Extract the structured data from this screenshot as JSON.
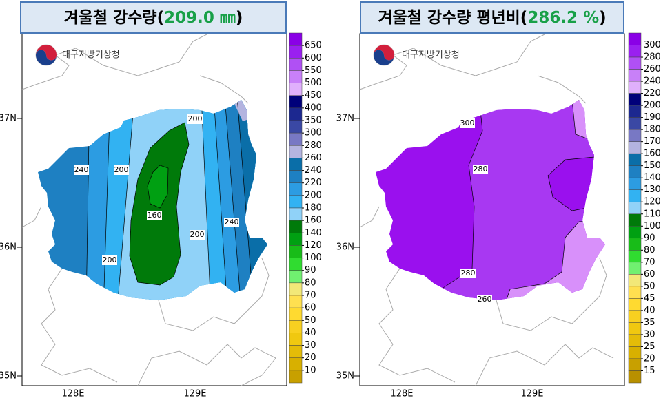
{
  "panels": [
    {
      "title": "겨울철 강수량(",
      "highlight": "209.0 ㎜",
      "title_end": ")",
      "logo": "대구지방기상청",
      "lat_labels": [
        "37N",
        "36N",
        "35N"
      ],
      "lon_labels": [
        "128E",
        "129E"
      ],
      "contour_labels": [
        "200",
        "240",
        "200",
        "160",
        "200",
        "240",
        "200"
      ],
      "colorbar": {
        "ticks": [
          650,
          600,
          550,
          500,
          450,
          400,
          350,
          300,
          280,
          260,
          240,
          220,
          200,
          180,
          160,
          140,
          120,
          100,
          90,
          80,
          70,
          60,
          50,
          40,
          30,
          20,
          10
        ],
        "colors": [
          "#8a00e6",
          "#9a20f0",
          "#b050f4",
          "#c880f8",
          "#e0b0fc",
          "#00007a",
          "#1c2890",
          "#3a48a4",
          "#7878c4",
          "#b4b4e0",
          "#0a6ea8",
          "#1e80c2",
          "#2c9ce2",
          "#32b2f2",
          "#90d2f8",
          "#007a0a",
          "#00a012",
          "#18bc18",
          "#30dc30",
          "#70f070",
          "#f2e878",
          "#ffe050",
          "#ffda30",
          "#f8d020",
          "#f0c810",
          "#e4bc08",
          "#d8b000",
          "#c8a000"
        ]
      }
    },
    {
      "title": "겨울철 강수량 평년비(",
      "highlight": "286.2 %",
      "title_end": ")",
      "logo": "대구지방기상청",
      "lat_labels": [
        "37N",
        "36N",
        "35N"
      ],
      "lon_labels": [
        "128E",
        "129E"
      ],
      "contour_labels": [
        "300",
        "280",
        "280",
        "260"
      ],
      "colorbar": {
        "ticks": [
          300,
          280,
          260,
          240,
          220,
          200,
          190,
          180,
          170,
          160,
          150,
          140,
          130,
          120,
          110,
          100,
          90,
          80,
          70,
          60,
          50,
          45,
          40,
          35,
          30,
          25,
          20,
          15
        ],
        "colors": [
          "#8a00e6",
          "#9a20f0",
          "#b050f4",
          "#c880f8",
          "#e0b0fc",
          "#00007a",
          "#1c2890",
          "#3a48a4",
          "#7878c4",
          "#b4b4e0",
          "#0a6ea8",
          "#1e80c2",
          "#2c9ce2",
          "#32b2f2",
          "#90d2f8",
          "#007a0a",
          "#00a012",
          "#18bc18",
          "#30dc30",
          "#70f070",
          "#f2e878",
          "#ffe050",
          "#ffda30",
          "#f8d020",
          "#f0c810",
          "#e4bc08",
          "#d8b000",
          "#c8a000",
          "#b89000"
        ]
      }
    }
  ]
}
